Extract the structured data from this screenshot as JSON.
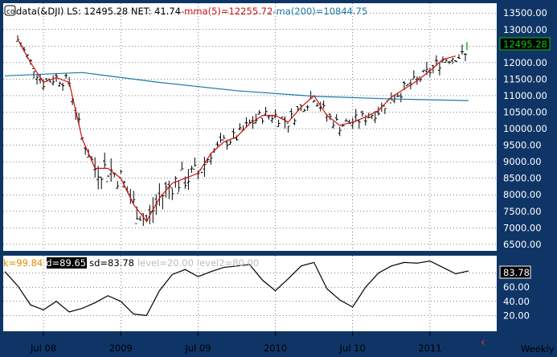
{
  "colors": {
    "frame": "#0f3566",
    "panel": "#ffffff",
    "grid": "#000000",
    "price_bars": "#000000",
    "mma": "#cc1111",
    "ma200": "#1a7aa6",
    "last_price_text": "#10c010",
    "overlay_red": "#cc2222",
    "axis_text": "#ffffff",
    "stoch": "#000000"
  },
  "header": {
    "icon": "co-badge-icon",
    "prefix": "data(&DJI) LS: ",
    "ls_value": "12495.28",
    "net_label": "  NET: ",
    "net_value": "41.74",
    "mma_label": "-mma(5)=",
    "mma_value": "12255.72",
    "ma_label": "-ma(200)=",
    "ma_value": "10844.75"
  },
  "stoch_header": {
    "k_label": "k=",
    "k_value": "99.84",
    "d_label": "d=",
    "d_value": "89.65",
    "sd_label": "sd=",
    "sd_value": "83.78",
    "level1_label": "level=",
    "level1_value": "20.00",
    "level2_label": "level2=",
    "level2_value": "80.00"
  },
  "footer": {
    "period": "Weekly",
    "scroll_icon": "chevron-left-icon"
  },
  "chart_data": [
    {
      "type": "line",
      "subtype": "ohlc-weekly",
      "symbol": "&DJI",
      "last_price": 12495.28,
      "last_price_label": "12495.28",
      "x_ticks": [
        {
          "label": "Jul 08",
          "date": "2008-07"
        },
        {
          "label": "2009",
          "date": "2009-01"
        },
        {
          "label": "Jul 09",
          "date": "2009-07"
        },
        {
          "label": "2010",
          "date": "2010-01"
        },
        {
          "label": "Jul 10",
          "date": "2010-07"
        },
        {
          "label": "2011",
          "date": "2011-01"
        }
      ],
      "x_range": [
        "2008-04",
        "2011-04"
      ],
      "y_ticks": [
        "6500.00",
        "7000.00",
        "7500.00",
        "8000.00",
        "8500.00",
        "9000.00",
        "9500.00",
        "10000.00",
        "10500.00",
        "11000.00",
        "11500.00",
        "12000.00",
        "12500.00",
        "13000.00",
        "13500.00"
      ],
      "y_range": [
        6400,
        13700
      ],
      "grid": true,
      "series": [
        {
          "name": "mma(5)",
          "x": [
            "2008-05",
            "2008-06",
            "2008-07",
            "2008-08",
            "2008-09",
            "2008-10",
            "2008-11",
            "2008-12",
            "2009-01",
            "2009-02",
            "2009-03",
            "2009-04",
            "2009-05",
            "2009-06",
            "2009-07",
            "2009-08",
            "2009-09",
            "2009-10",
            "2009-11",
            "2009-12",
            "2010-01",
            "2010-02",
            "2010-03",
            "2010-04",
            "2010-05",
            "2010-06",
            "2010-07",
            "2010-08",
            "2010-09",
            "2010-10",
            "2010-11",
            "2010-12",
            "2011-01",
            "2011-02",
            "2011-03"
          ],
          "values": [
            12700,
            12000,
            11400,
            11550,
            11400,
            9700,
            8800,
            8800,
            8500,
            7700,
            7200,
            7900,
            8350,
            8500,
            8650,
            9250,
            9600,
            9750,
            10150,
            10400,
            10400,
            10200,
            10650,
            11000,
            10400,
            10100,
            10200,
            10350,
            10550,
            10950,
            11200,
            11450,
            11750,
            12100,
            12200
          ]
        },
        {
          "name": "ma(200)",
          "x": [
            "2008-04",
            "2008-10",
            "2009-04",
            "2009-10",
            "2010-04",
            "2010-10",
            "2011-04"
          ],
          "values": [
            11600,
            11700,
            11400,
            11150,
            10980,
            10900,
            10850
          ]
        }
      ]
    },
    {
      "type": "line",
      "subtype": "stochastic",
      "y_ticks": [
        "20.00",
        "40.00",
        "60.00",
        "80.00"
      ],
      "y_range": [
        0,
        100
      ],
      "last_value_label": "83.78",
      "series": [
        {
          "name": "sd",
          "x": [
            "2008-04",
            "2008-05",
            "2008-06",
            "2008-07",
            "2008-08",
            "2008-09",
            "2008-10",
            "2008-11",
            "2008-12",
            "2009-01",
            "2009-02",
            "2009-03",
            "2009-04",
            "2009-05",
            "2009-06",
            "2009-07",
            "2009-08",
            "2009-09",
            "2009-10",
            "2009-11",
            "2009-12",
            "2010-01",
            "2010-02",
            "2010-03",
            "2010-04",
            "2010-05",
            "2010-06",
            "2010-07",
            "2010-08",
            "2010-09",
            "2010-10",
            "2010-11",
            "2010-12",
            "2011-01",
            "2011-02",
            "2011-03",
            "2011-04"
          ],
          "values": [
            82,
            62,
            35,
            28,
            40,
            25,
            30,
            38,
            48,
            40,
            22,
            20,
            55,
            78,
            85,
            75,
            82,
            88,
            90,
            92,
            70,
            55,
            72,
            90,
            95,
            58,
            42,
            32,
            60,
            80,
            90,
            95,
            94,
            97,
            88,
            79,
            83
          ]
        }
      ]
    }
  ]
}
